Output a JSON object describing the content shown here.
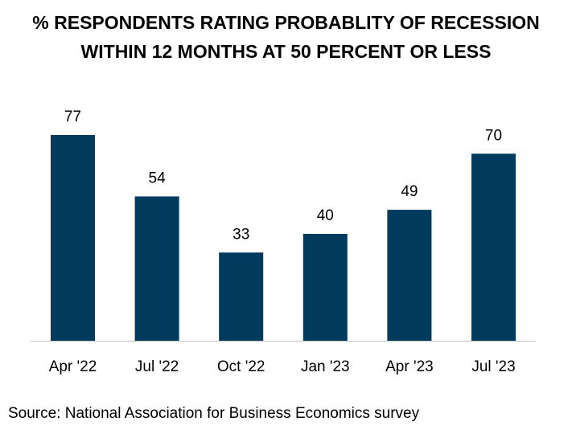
{
  "chart_data": {
    "type": "bar",
    "title_lines": [
      "% RESPONDENTS RATING PROBABLITY OF RECESSION",
      "WITHIN 12 MONTHS AT 50 PERCENT OR LESS"
    ],
    "categories": [
      "Apr '22",
      "Jul '22",
      "Oct '22",
      "Jan '23",
      "Apr '23",
      "Jul '23"
    ],
    "values": [
      77,
      54,
      33,
      40,
      49,
      70
    ],
    "xlabel": "",
    "ylabel": "",
    "ylim": [
      0,
      100
    ],
    "grid": false,
    "bar_color": "#003A5D"
  },
  "source": "Source: National Association for Business Economics survey"
}
